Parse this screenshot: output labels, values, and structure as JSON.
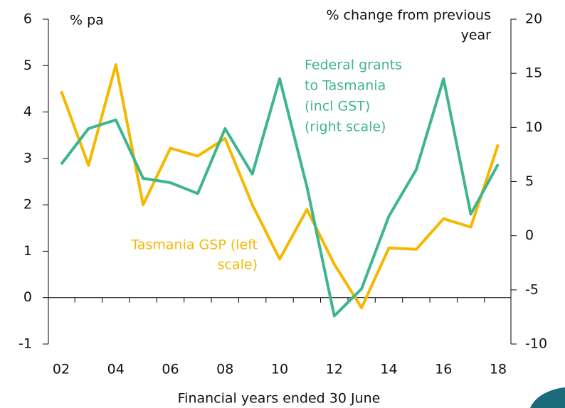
{
  "chart_data": {
    "type": "line",
    "y_label": "% pa",
    "y2_label": [
      "% change from previous",
      "year"
    ],
    "x_label": "Financial years ended 30 June",
    "categories": [
      "02",
      null,
      "04",
      null,
      "06",
      null,
      "08",
      null,
      "10",
      null,
      "12",
      null,
      "14",
      null,
      "16",
      null,
      "18"
    ],
    "ylim": [
      -1,
      6
    ],
    "yticks": [
      -1,
      0,
      1,
      2,
      3,
      4,
      5,
      6
    ],
    "y2lim": [
      -10,
      20
    ],
    "y2ticks": [
      -10,
      -5,
      0,
      5,
      10,
      15,
      20
    ],
    "series": [
      {
        "name": [
          "Tasmania GSP (left",
          "scale)"
        ],
        "color": "#f5b800",
        "axis": "y",
        "values": [
          4.45,
          2.85,
          5.02,
          2.0,
          3.22,
          3.05,
          3.43,
          2.0,
          0.83,
          1.9,
          0.72,
          -0.22,
          1.07,
          1.04,
          1.7,
          1.52,
          3.3
        ]
      },
      {
        "name": [
          "Federal grants",
          "to Tasmania",
          "(incl GST)",
          "(right scale)"
        ],
        "color": "#3fb58f",
        "axis": "y2",
        "values": [
          6.6,
          9.9,
          10.7,
          5.3,
          4.9,
          3.9,
          9.9,
          5.7,
          14.5,
          4.5,
          -7.4,
          -4.9,
          1.8,
          6.1,
          14.5,
          2.0,
          6.6
        ]
      }
    ]
  }
}
